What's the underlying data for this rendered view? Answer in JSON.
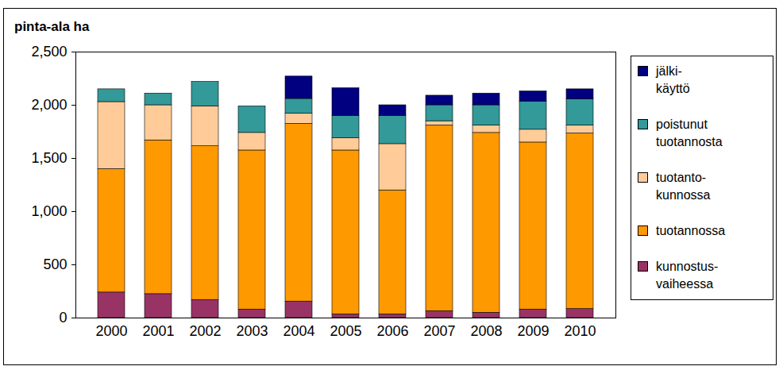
{
  "chart_data": {
    "type": "bar",
    "stacked": true,
    "y_label": "pinta-ala ha",
    "categories": [
      "2000",
      "2001",
      "2002",
      "2003",
      "2004",
      "2005",
      "2006",
      "2007",
      "2008",
      "2009",
      "2010"
    ],
    "series": [
      {
        "name": "kunnostus-vaiheessa",
        "color": "#993366",
        "values": [
          240,
          225,
          170,
          80,
          155,
          35,
          35,
          65,
          50,
          80,
          85
        ]
      },
      {
        "name": "tuotannossa",
        "color": "#FF9900",
        "values": [
          1160,
          1445,
          1445,
          1495,
          1670,
          1540,
          1165,
          1745,
          1690,
          1570,
          1650
        ]
      },
      {
        "name": "tuotanto-kunnossa",
        "color": "#FFCC99",
        "values": [
          630,
          330,
          375,
          165,
          95,
          115,
          435,
          40,
          70,
          120,
          75
        ]
      },
      {
        "name": "poistunut tuotannosta",
        "color": "#339999",
        "values": [
          120,
          110,
          230,
          250,
          140,
          210,
          265,
          150,
          190,
          265,
          245
        ]
      },
      {
        "name": "jälki-käyttö",
        "color": "#000080",
        "values": [
          0,
          0,
          0,
          0,
          210,
          260,
          100,
          90,
          110,
          95,
          95
        ]
      }
    ],
    "ylim": [
      0,
      2500
    ],
    "yticks": [
      0,
      500,
      1000,
      1500,
      2000,
      2500
    ],
    "grid": false,
    "legend": "right"
  }
}
